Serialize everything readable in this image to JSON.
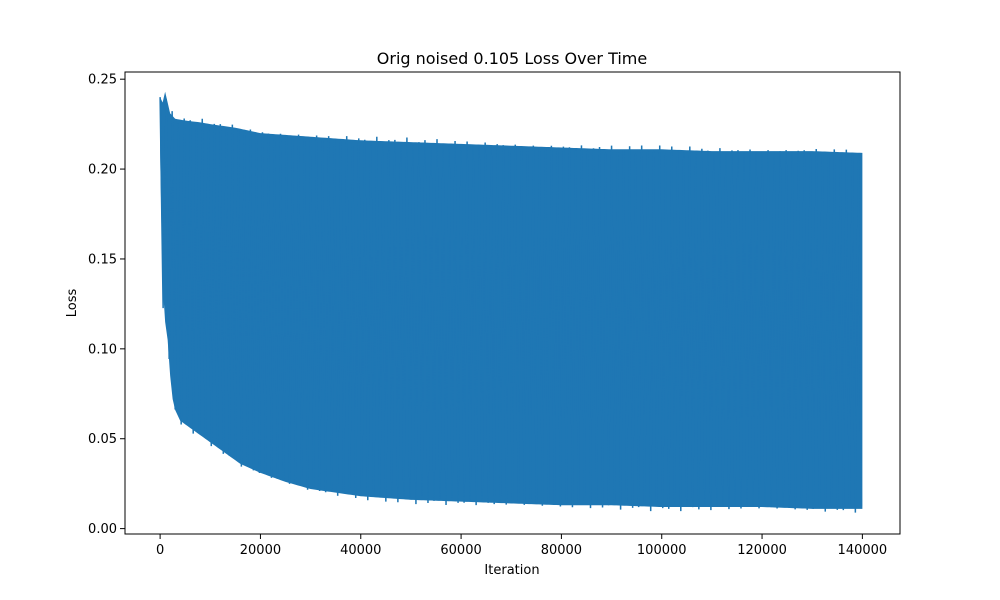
{
  "chart_data": {
    "type": "line",
    "title": "Orig noised 0.105 Loss Over Time",
    "xlabel": "Iteration",
    "ylabel": "Loss",
    "xlim": [
      -7000,
      147500
    ],
    "ylim": [
      -0.003,
      0.254
    ],
    "x_ticks": [
      {
        "value": 0,
        "label": "0"
      },
      {
        "value": 20000,
        "label": "20000"
      },
      {
        "value": 40000,
        "label": "40000"
      },
      {
        "value": 60000,
        "label": "60000"
      },
      {
        "value": 80000,
        "label": "80000"
      },
      {
        "value": 100000,
        "label": "100000"
      },
      {
        "value": 120000,
        "label": "120000"
      },
      {
        "value": 140000,
        "label": "140000"
      }
    ],
    "y_ticks": [
      {
        "value": 0.0,
        "label": "0.00"
      },
      {
        "value": 0.05,
        "label": "0.05"
      },
      {
        "value": 0.1,
        "label": "0.10"
      },
      {
        "value": 0.15,
        "label": "0.15"
      },
      {
        "value": 0.2,
        "label": "0.20"
      },
      {
        "value": 0.25,
        "label": "0.25"
      }
    ],
    "grid": false,
    "series": [
      {
        "color": "#1f77b4",
        "upper_envelope": {
          "x": [
            0,
            500,
            1000,
            2000,
            3000,
            5000,
            8000,
            10000,
            15000,
            20000,
            25000,
            30000,
            40000,
            50000,
            60000,
            70000,
            80000,
            90000,
            100000,
            110000,
            120000,
            130000,
            140000
          ],
          "y": [
            0.24,
            0.237,
            0.243,
            0.231,
            0.228,
            0.227,
            0.226,
            0.225,
            0.223,
            0.22,
            0.219,
            0.218,
            0.216,
            0.215,
            0.214,
            0.213,
            0.212,
            0.211,
            0.211,
            0.21,
            0.21,
            0.21,
            0.209
          ]
        },
        "lower_envelope": {
          "x": [
            0,
            300,
            600,
            1000,
            1500,
            2000,
            2500,
            3000,
            4000,
            5000,
            7000,
            9000,
            11000,
            13000,
            16000,
            20000,
            25000,
            30000,
            40000,
            50000,
            60000,
            70000,
            80000,
            90000,
            100000,
            110000,
            120000,
            130000,
            140000
          ],
          "y": [
            0.21,
            0.16,
            0.125,
            0.115,
            0.105,
            0.085,
            0.072,
            0.066,
            0.06,
            0.058,
            0.054,
            0.05,
            0.046,
            0.042,
            0.036,
            0.031,
            0.026,
            0.022,
            0.018,
            0.016,
            0.015,
            0.014,
            0.013,
            0.013,
            0.012,
            0.012,
            0.012,
            0.011,
            0.011
          ]
        }
      }
    ]
  }
}
